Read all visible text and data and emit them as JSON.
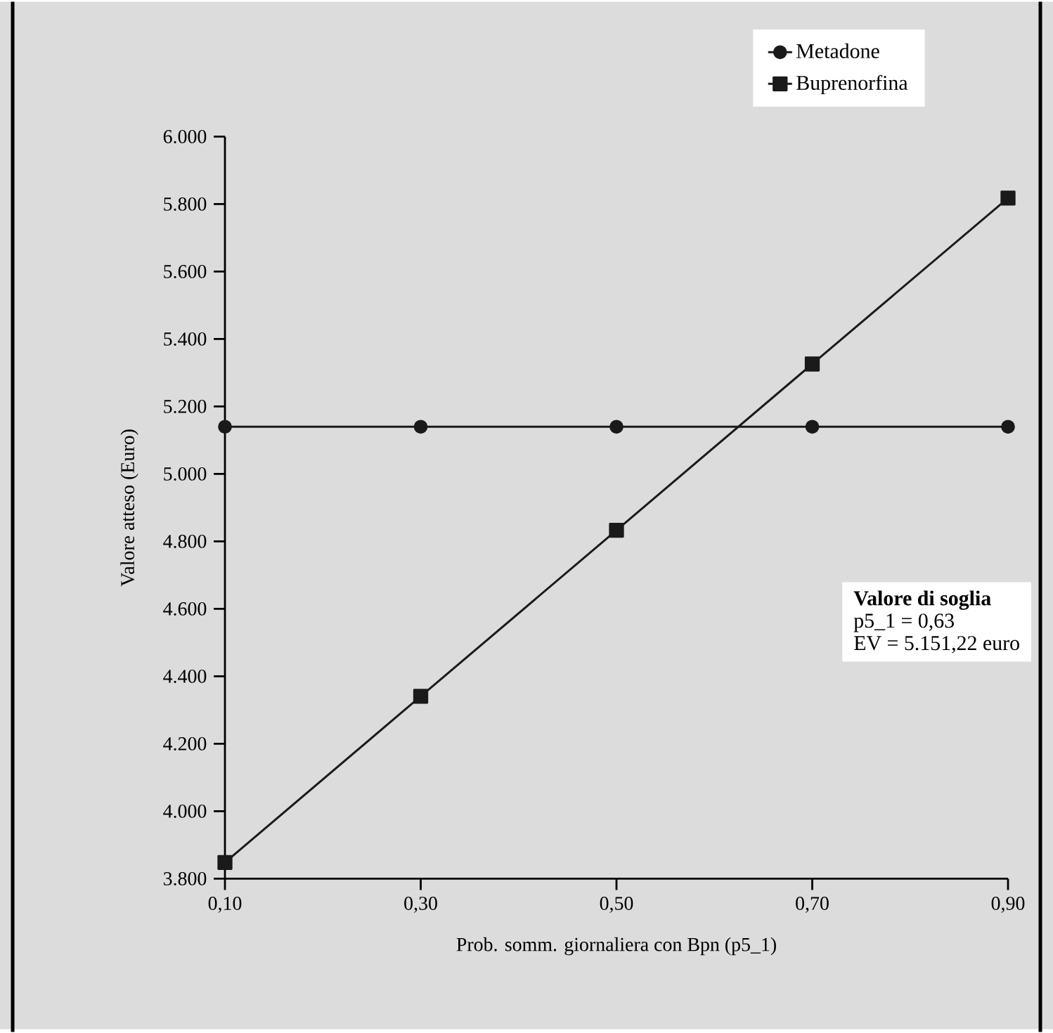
{
  "chart_data": {
    "type": "line",
    "xlabel": "Prob. somm. giornaliera con Bpn (p5_1)",
    "ylabel": "Valore atteso (Euro)",
    "x": [
      0.1,
      0.3,
      0.5,
      0.7,
      0.9
    ],
    "series": [
      {
        "name": "Metadone",
        "color": "#1a1a1a",
        "marker": "circle",
        "values": [
          5140,
          5140,
          5140,
          5140,
          5140
        ]
      },
      {
        "name": "Buprenorfina",
        "color": "#1a1a1a",
        "marker": "square",
        "values": [
          3848,
          4341,
          4833,
          5326,
          5818
        ]
      }
    ],
    "xlim": [
      0.1,
      0.9
    ],
    "ylim": [
      3800,
      6000
    ],
    "xticks": [
      {
        "value": 0.1,
        "label": "0,10"
      },
      {
        "value": 0.3,
        "label": "0,30"
      },
      {
        "value": 0.5,
        "label": "0,50"
      },
      {
        "value": 0.7,
        "label": "0,70"
      },
      {
        "value": 0.9,
        "label": "0,90"
      }
    ],
    "yticks": [
      {
        "value": 3800,
        "label": "3.800"
      },
      {
        "value": 4000,
        "label": "4.000"
      },
      {
        "value": 4200,
        "label": "4.200"
      },
      {
        "value": 4400,
        "label": "4.400"
      },
      {
        "value": 4600,
        "label": "4.600"
      },
      {
        "value": 4800,
        "label": "4.800"
      },
      {
        "value": 5000,
        "label": "5.000"
      },
      {
        "value": 5200,
        "label": "5.200"
      },
      {
        "value": 5400,
        "label": "5.400"
      },
      {
        "value": 5600,
        "label": "5.600"
      },
      {
        "value": 5800,
        "label": "5.800"
      },
      {
        "value": 6000,
        "label": "6.000"
      }
    ],
    "annotations": [
      "Valore di soglia",
      "p5_1 = 0,63",
      "EV = 5.151,22 euro"
    ],
    "legend": "top right",
    "grid": false,
    "line_style": "solid"
  }
}
